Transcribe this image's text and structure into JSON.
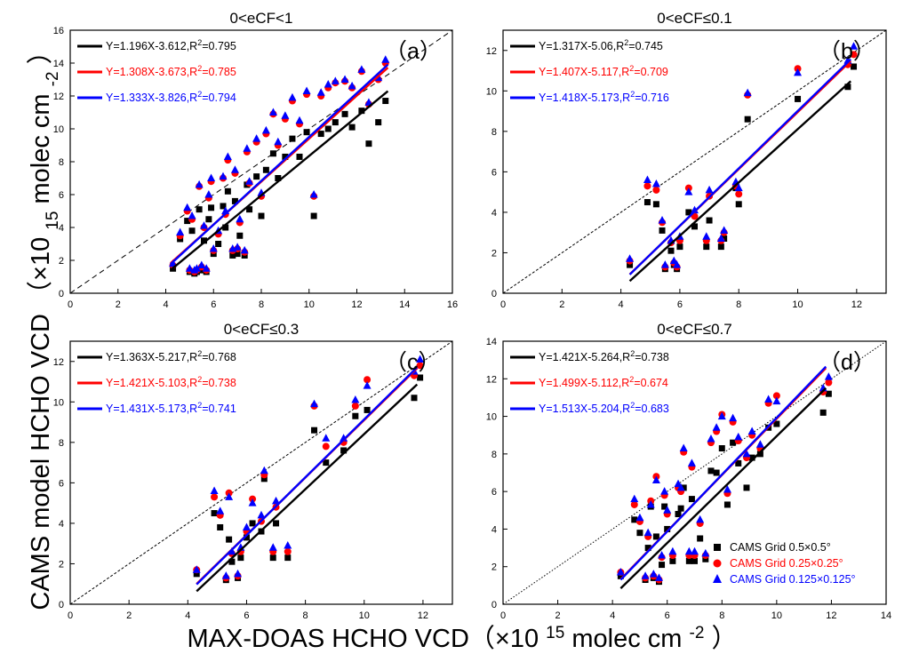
{
  "figure": {
    "ylabel_main": "CAMS model HCHO VCD",
    "ylabel_unit": "（×10",
    "ylabel_exp": "15",
    "ylabel_unit2": "molec cm",
    "ylabel_exp2": "-2",
    "ylabel_close": "）",
    "xlabel_main": "MAX-DOAS HCHO VCD（×10",
    "xlabel_exp": "15",
    "xlabel_mid": "molec cm",
    "xlabel_exp2": "-2",
    "xlabel_close": "）"
  },
  "legend": {
    "entries": [
      {
        "label": "CAMS Grid  0.5×0.5°",
        "color": "#000000",
        "marker": "square"
      },
      {
        "label": "CAMS Grid  0.25×0.25°",
        "color": "#ff0000",
        "marker": "circle"
      },
      {
        "label": "CAMS Grid  0.125×0.125°",
        "color": "#0000ff",
        "marker": "triangle"
      }
    ]
  },
  "chart_data": [
    {
      "type": "scatter",
      "panel": "a",
      "panel_label": "（a）",
      "title": "0<eCF<1",
      "xlim": [
        0,
        16
      ],
      "ylim": [
        0,
        16
      ],
      "xticks": [
        0,
        2,
        4,
        6,
        8,
        10,
        12,
        14,
        16
      ],
      "yticks": [
        0,
        2,
        4,
        6,
        8,
        10,
        12,
        14,
        16
      ],
      "colors": [
        "#000000",
        "#ff0000",
        "#0000ff"
      ],
      "fits": [
        {
          "prefix": "Y=1.196X-3.612,R",
          "suffix": "=0.795",
          "slope": 1.196,
          "intercept": -3.612,
          "x_range": [
            4.2,
            13.3
          ]
        },
        {
          "prefix": "Y=1.308X-3.673,R",
          "suffix": "=0.785",
          "slope": 1.308,
          "intercept": -3.673,
          "x_range": [
            4.2,
            13.3
          ]
        },
        {
          "prefix": "Y=1.333X-3.826,R",
          "suffix": "=0.794",
          "slope": 1.333,
          "intercept": -3.826,
          "x_range": [
            4.2,
            13.3
          ]
        }
      ],
      "x": [
        4.3,
        4.6,
        4.9,
        5.0,
        5.1,
        5.2,
        5.3,
        5.4,
        5.5,
        5.6,
        5.7,
        5.8,
        5.9,
        6.0,
        6.2,
        6.4,
        6.5,
        6.6,
        6.8,
        6.9,
        7.0,
        7.1,
        7.3,
        7.4,
        7.5,
        7.8,
        8.0,
        8.2,
        8.5,
        8.7,
        9.0,
        9.3,
        9.6,
        9.9,
        10.2,
        10.5,
        10.8,
        11.1,
        11.5,
        11.8,
        12.2,
        12.5,
        12.9,
        13.2
      ],
      "series": [
        {
          "name": "CAMS Grid  0.5×0.5°",
          "marker": "square",
          "color": "#000000",
          "values": [
            1.5,
            3.3,
            4.4,
            1.3,
            3.8,
            1.2,
            1.3,
            5.1,
            1.4,
            3.2,
            1.3,
            4.5,
            5.2,
            2.4,
            3.0,
            5.3,
            4.0,
            6.2,
            2.3,
            5.6,
            2.4,
            3.5,
            2.3,
            6.6,
            5.1,
            7.1,
            4.7,
            7.5,
            8.5,
            7.0,
            8.3,
            9.4,
            8.3,
            9.8,
            4.7,
            9.7,
            10.0,
            10.4,
            10.9,
            10.1,
            11.1,
            9.1,
            10.4,
            11.7
          ]
        },
        {
          "name": "CAMS Grid  0.25×0.25°",
          "marker": "circle",
          "color": "#ff0000",
          "values": [
            1.7,
            3.5,
            5.0,
            1.4,
            4.5,
            1.3,
            1.4,
            6.5,
            1.6,
            4.0,
            1.4,
            5.8,
            6.8,
            2.6,
            3.6,
            7.0,
            4.8,
            8.1,
            2.6,
            7.3,
            2.7,
            4.3,
            2.5,
            8.6,
            6.7,
            9.2,
            5.9,
            9.7,
            10.9,
            9.0,
            10.6,
            11.7,
            10.3,
            12.1,
            5.9,
            12.0,
            12.5,
            12.8,
            12.9,
            12.5,
            13.5,
            11.5,
            13.0,
            14.0
          ]
        },
        {
          "name": "CAMS Grid  0.125×0.125°",
          "marker": "triangle",
          "color": "#0000ff",
          "values": [
            1.8,
            3.7,
            5.2,
            1.5,
            4.7,
            1.4,
            1.5,
            6.6,
            1.7,
            4.1,
            1.5,
            6.0,
            7.0,
            2.7,
            3.8,
            7.1,
            5.0,
            8.3,
            2.7,
            7.5,
            2.8,
            4.5,
            2.6,
            8.8,
            6.8,
            9.4,
            6.1,
            9.9,
            11.0,
            9.2,
            10.8,
            11.9,
            10.5,
            12.3,
            6.0,
            12.2,
            12.7,
            12.9,
            13.0,
            12.6,
            13.6,
            11.6,
            13.1,
            14.2
          ]
        }
      ]
    },
    {
      "type": "scatter",
      "panel": "b",
      "panel_label": "（b）",
      "title": "0<eCF≤0.1",
      "xlim": [
        0,
        13
      ],
      "ylim": [
        0,
        13
      ],
      "xticks": [
        0,
        2,
        4,
        6,
        8,
        10,
        12
      ],
      "yticks": [
        0,
        2,
        4,
        6,
        8,
        10,
        12
      ],
      "colors": [
        "#000000",
        "#ff0000",
        "#0000ff"
      ],
      "fits": [
        {
          "prefix": "Y=1.317X-5.06,R",
          "suffix": "=0.745",
          "slope": 1.317,
          "intercept": -5.06,
          "x_range": [
            4.3,
            11.8
          ]
        },
        {
          "prefix": "Y=1.407X-5.117,R",
          "suffix": "=0.709",
          "slope": 1.407,
          "intercept": -5.117,
          "x_range": [
            4.3,
            11.8
          ]
        },
        {
          "prefix": "Y=1.418X-5.173,R",
          "suffix": "=0.716",
          "slope": 1.418,
          "intercept": -5.173,
          "x_range": [
            4.3,
            11.8
          ]
        }
      ],
      "x": [
        4.3,
        4.9,
        5.2,
        5.4,
        5.5,
        5.7,
        5.8,
        5.9,
        6.0,
        6.3,
        6.5,
        6.9,
        7.0,
        7.4,
        7.5,
        7.9,
        8.0,
        8.3,
        10.0,
        11.7,
        11.9
      ],
      "series": [
        {
          "name": "CAMS Grid  0.5×0.5°",
          "marker": "square",
          "color": "#000000",
          "values": [
            1.4,
            4.5,
            4.4,
            3.1,
            1.2,
            2.1,
            1.4,
            1.2,
            2.3,
            4.0,
            3.3,
            2.3,
            3.6,
            2.3,
            2.7,
            5.2,
            4.4,
            8.6,
            9.6,
            10.2,
            11.2
          ]
        },
        {
          "name": "CAMS Grid  0.25×0.25°",
          "marker": "circle",
          "color": "#ff0000",
          "values": [
            1.6,
            5.3,
            5.1,
            3.5,
            1.3,
            2.5,
            1.5,
            1.3,
            2.6,
            5.2,
            3.8,
            2.6,
            4.8,
            2.6,
            3.0,
            5.3,
            4.9,
            9.8,
            11.1,
            11.3,
            11.8
          ]
        },
        {
          "name": "CAMS Grid  0.125×0.125°",
          "marker": "triangle",
          "color": "#0000ff",
          "values": [
            1.7,
            5.6,
            5.4,
            3.6,
            1.4,
            2.6,
            1.6,
            1.4,
            2.8,
            5.0,
            4.1,
            2.8,
            5.1,
            2.7,
            3.1,
            5.5,
            5.2,
            9.9,
            10.9,
            11.5,
            12.2
          ]
        }
      ]
    },
    {
      "type": "scatter",
      "panel": "c",
      "panel_label": "（c）",
      "title": "0<eCF≤0.3",
      "xlim": [
        0,
        13
      ],
      "ylim": [
        0,
        13
      ],
      "xticks": [
        0,
        2,
        4,
        6,
        8,
        10,
        12
      ],
      "yticks": [
        0,
        2,
        4,
        6,
        8,
        10,
        12
      ],
      "colors": [
        "#000000",
        "#ff0000",
        "#0000ff"
      ],
      "fits": [
        {
          "prefix": "Y=1.363X-5.217,R",
          "suffix": "=0.768",
          "slope": 1.363,
          "intercept": -5.217,
          "x_range": [
            4.3,
            11.8
          ]
        },
        {
          "prefix": "Y=1.421X-5.103,R",
          "suffix": "=0.738",
          "slope": 1.421,
          "intercept": -5.103,
          "x_range": [
            4.3,
            11.8
          ]
        },
        {
          "prefix": "Y=1.431X-5.173,R",
          "suffix": "=0.741",
          "slope": 1.431,
          "intercept": -5.173,
          "x_range": [
            4.3,
            11.8
          ]
        }
      ],
      "x": [
        4.3,
        4.9,
        5.1,
        5.3,
        5.4,
        5.5,
        5.7,
        5.8,
        6.0,
        6.2,
        6.5,
        6.6,
        6.9,
        7.0,
        7.4,
        8.3,
        8.7,
        9.3,
        9.7,
        10.1,
        11.7,
        11.9
      ],
      "series": [
        {
          "name": "CAMS Grid  0.5×0.5°",
          "marker": "square",
          "color": "#000000",
          "values": [
            1.5,
            4.5,
            3.8,
            1.2,
            3.2,
            2.1,
            1.3,
            2.3,
            3.3,
            4.0,
            3.6,
            6.2,
            2.3,
            4.0,
            2.3,
            8.6,
            7.0,
            7.6,
            9.3,
            9.6,
            10.2,
            11.2
          ]
        },
        {
          "name": "CAMS Grid  0.25×0.25°",
          "marker": "circle",
          "color": "#ff0000",
          "values": [
            1.7,
            5.3,
            4.4,
            1.3,
            5.5,
            2.5,
            1.4,
            2.6,
            3.6,
            5.2,
            4.1,
            6.4,
            2.6,
            4.8,
            2.6,
            9.8,
            7.8,
            8.0,
            9.8,
            11.1,
            11.3,
            11.8
          ]
        },
        {
          "name": "CAMS Grid  0.125×0.125°",
          "marker": "triangle",
          "color": "#0000ff",
          "values": [
            1.7,
            5.6,
            4.6,
            1.4,
            5.3,
            2.6,
            1.5,
            2.8,
            3.8,
            5.0,
            4.4,
            6.6,
            2.8,
            5.1,
            2.9,
            9.9,
            8.2,
            8.2,
            10.1,
            10.8,
            11.5,
            12.1
          ]
        }
      ]
    },
    {
      "type": "scatter",
      "panel": "d",
      "panel_label": "（d）",
      "title": "0<eCF≤0.7",
      "xlim": [
        0,
        14
      ],
      "ylim": [
        0,
        14
      ],
      "xticks": [
        0,
        2,
        4,
        6,
        8,
        10,
        12,
        14
      ],
      "yticks": [
        0,
        2,
        4,
        6,
        8,
        10,
        12,
        14
      ],
      "colors": [
        "#000000",
        "#ff0000",
        "#0000ff"
      ],
      "fits": [
        {
          "prefix": "Y=1.421X-5.264,R",
          "suffix": "=0.738",
          "slope": 1.421,
          "intercept": -5.264,
          "x_range": [
            4.3,
            11.8
          ]
        },
        {
          "prefix": "Y=1.499X-5.112,R",
          "suffix": "=0.674",
          "slope": 1.499,
          "intercept": -5.112,
          "x_range": [
            4.3,
            11.8
          ]
        },
        {
          "prefix": "Y=1.513X-5.204,R",
          "suffix": "=0.683",
          "slope": 1.513,
          "intercept": -5.204,
          "x_range": [
            4.3,
            11.8
          ]
        }
      ],
      "x": [
        4.3,
        4.8,
        5.0,
        5.2,
        5.3,
        5.4,
        5.5,
        5.6,
        5.7,
        5.8,
        5.9,
        6.0,
        6.2,
        6.4,
        6.5,
        6.6,
        6.8,
        6.9,
        7.0,
        7.2,
        7.4,
        7.6,
        7.8,
        8.0,
        8.2,
        8.4,
        8.6,
        8.9,
        9.1,
        9.4,
        9.7,
        10.0,
        11.7,
        11.9
      ],
      "series": [
        {
          "name": "CAMS Grid  0.5×0.5°",
          "marker": "square",
          "color": "#000000",
          "values": [
            1.5,
            4.5,
            3.8,
            1.3,
            3.0,
            5.2,
            1.4,
            3.6,
            1.2,
            2.1,
            5.2,
            4.0,
            2.3,
            4.8,
            5.1,
            6.2,
            2.3,
            5.6,
            2.3,
            3.5,
            2.4,
            7.1,
            7.0,
            8.3,
            5.3,
            8.6,
            7.5,
            6.2,
            7.8,
            8.0,
            9.4,
            9.6,
            10.2,
            11.2
          ]
        },
        {
          "name": "CAMS Grid  0.25×0.25°",
          "marker": "circle",
          "color": "#ff0000",
          "values": [
            1.7,
            5.3,
            4.4,
            1.4,
            3.6,
            5.5,
            1.5,
            6.8,
            1.3,
            2.5,
            5.8,
            4.8,
            2.6,
            6.2,
            6.0,
            8.1,
            2.6,
            7.3,
            2.6,
            4.3,
            2.6,
            8.6,
            9.2,
            10.1,
            5.9,
            9.7,
            8.7,
            7.8,
            9.0,
            8.3,
            10.7,
            11.1,
            11.3,
            11.8
          ]
        },
        {
          "name": "CAMS Grid  0.125×0.125°",
          "marker": "triangle",
          "color": "#0000ff",
          "values": [
            1.7,
            5.6,
            4.6,
            1.5,
            3.8,
            5.3,
            1.6,
            6.6,
            1.4,
            2.6,
            6.0,
            5.0,
            2.8,
            6.4,
            6.2,
            8.3,
            2.8,
            7.5,
            2.8,
            4.5,
            2.7,
            8.8,
            9.4,
            10.0,
            6.1,
            9.9,
            8.9,
            8.0,
            9.2,
            8.5,
            10.9,
            10.8,
            11.5,
            12.1
          ]
        }
      ]
    }
  ]
}
